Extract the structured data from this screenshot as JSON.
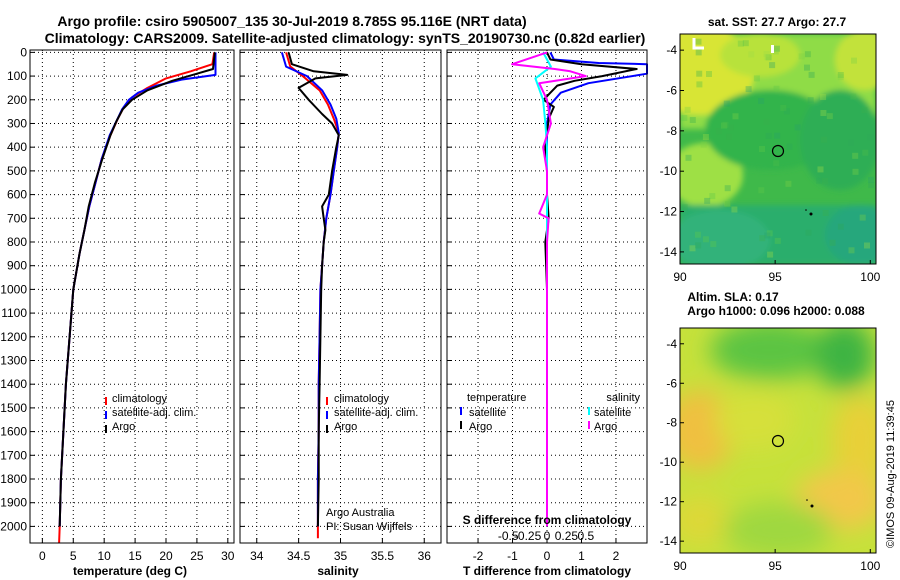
{
  "header": {
    "line1": "Argo profile: csiro 5905007_135 30-Jul-2019 8.785S 95.116E (NRT data)",
    "line2": "Climatology: CARS2009. Satellite-adjusted climatology: synTS_20190730.nc (0.82d earlier)"
  },
  "colors": {
    "climatology": "#ff0000",
    "satellite": "#0000ff",
    "argo": "#000000",
    "sat_salinity": "#00ffff",
    "argo_salinity": "#ff00ff"
  },
  "chart_data": [
    {
      "type": "line",
      "panel": "temperature",
      "xlabel": "temperature (deg C)",
      "xlim": [
        -2,
        31
      ],
      "ylim": [
        2070,
        -10
      ],
      "xticks": [
        0,
        5,
        10,
        15,
        20,
        25,
        30
      ],
      "yticks": [
        0,
        100,
        200,
        300,
        400,
        500,
        600,
        700,
        800,
        900,
        1000,
        1100,
        1200,
        1300,
        1400,
        1500,
        1600,
        1700,
        1800,
        1900,
        2000
      ],
      "legend": [
        "climatology",
        "satellite-adj. clim.",
        "Argo"
      ],
      "series": [
        {
          "name": "climatology",
          "color": "#ff0000",
          "x": [
            27.8,
            27.5,
            24,
            20,
            17,
            14.5,
            13.2,
            12.2,
            11,
            9.6,
            8.6,
            7.6,
            6.8,
            6.0,
            5.0,
            4.4,
            3.8,
            3.4,
            3.0,
            2.8,
            2.7
          ],
          "y": [
            0,
            50,
            80,
            110,
            150,
            190,
            230,
            280,
            350,
            450,
            550,
            650,
            750,
            850,
            1000,
            1200,
            1400,
            1600,
            1800,
            2000,
            2070
          ]
        },
        {
          "name": "satellite-adj. clim.",
          "color": "#0000ff",
          "x": [
            28.0,
            28.0,
            22.5,
            18.5,
            15.5,
            14.0,
            12.9,
            12.0,
            10.9,
            9.6,
            8.6,
            7.6,
            6.8,
            6.0,
            5.0,
            4.4,
            3.8,
            3.4,
            3.0,
            2.8
          ],
          "y": [
            0,
            95,
            115,
            140,
            170,
            200,
            240,
            290,
            350,
            450,
            550,
            650,
            750,
            850,
            1000,
            1200,
            1400,
            1600,
            1800,
            2000
          ]
        },
        {
          "name": "Argo",
          "color": "#000000",
          "x": [
            27.9,
            27.6,
            25,
            21,
            17,
            14.5,
            13.0,
            12.0,
            11.0,
            9.7,
            8.5,
            7.5,
            6.8,
            6.0,
            5.0,
            4.4,
            3.8,
            3.4,
            3.0,
            2.8
          ],
          "y": [
            0,
            70,
            90,
            120,
            160,
            200,
            240,
            290,
            350,
            450,
            550,
            650,
            750,
            850,
            1000,
            1200,
            1400,
            1600,
            1800,
            2000
          ]
        }
      ]
    },
    {
      "type": "line",
      "panel": "salinity",
      "xlabel": "salinity",
      "xlim": [
        33.8,
        36.2
      ],
      "ylim": [
        2070,
        -10
      ],
      "xticks": [
        34,
        34.5,
        35,
        35.5,
        36
      ],
      "legend": [
        "climatology",
        "satellite-adj. clim.",
        "Argo"
      ],
      "annotations": [
        "Argo Australia",
        "PI: Susan Wijffels"
      ],
      "series": [
        {
          "name": "climatology",
          "color": "#ff0000",
          "x": [
            34.35,
            34.4,
            34.55,
            34.75,
            34.85,
            34.92,
            34.98,
            34.96,
            34.92,
            34.88,
            34.83,
            34.8,
            34.78,
            34.76,
            34.75,
            34.74,
            34.74,
            34.73,
            34.73,
            34.73
          ],
          "y": [
            0,
            60,
            100,
            160,
            220,
            280,
            340,
            400,
            500,
            600,
            700,
            800,
            900,
            1000,
            1200,
            1400,
            1600,
            1800,
            2000,
            2050
          ]
        },
        {
          "name": "satellite-adj. clim.",
          "color": "#0000ff",
          "x": [
            34.3,
            34.35,
            34.6,
            34.78,
            34.88,
            34.95,
            34.98,
            34.96,
            34.92,
            34.88,
            34.83,
            34.8,
            34.78,
            34.76,
            34.75,
            34.74,
            34.74,
            34.73,
            34.73
          ],
          "y": [
            0,
            60,
            100,
            160,
            220,
            280,
            340,
            400,
            500,
            600,
            700,
            800,
            900,
            1000,
            1200,
            1400,
            1600,
            1800,
            2000
          ]
        },
        {
          "name": "Argo",
          "color": "#000000",
          "x": [
            34.38,
            34.42,
            34.68,
            35.08,
            34.7,
            34.5,
            34.62,
            34.78,
            34.9,
            34.98,
            34.95,
            34.9,
            34.86,
            34.78,
            34.8,
            34.82,
            34.8,
            34.78,
            34.77,
            34.76,
            34.75,
            34.74,
            34.74,
            34.73
          ],
          "y": [
            0,
            50,
            80,
            95,
            110,
            150,
            200,
            260,
            300,
            350,
            400,
            500,
            600,
            650,
            700,
            750,
            800,
            900,
            1000,
            1200,
            1400,
            1600,
            1800,
            2000
          ]
        }
      ]
    },
    {
      "type": "line",
      "panel": "difference",
      "xlabel": "T difference from climatology",
      "xlabel_top": "S difference from climatology",
      "xlim": [
        -2.9,
        2.9
      ],
      "ylim": [
        2070,
        -10
      ],
      "xticks": [
        -2,
        -1,
        0,
        1,
        2
      ],
      "xticklabels": [
        "-2",
        "-1",
        "0",
        "1",
        "2"
      ],
      "sticks": [
        -0.5,
        -0.25,
        0,
        0.25,
        0.5
      ],
      "sticklabels": [
        "-0.5",
        "-0.25",
        "0",
        "0.25",
        "0.5"
      ],
      "legend_left_title": "temperature",
      "legend_right_title": "salinity",
      "legend": [
        "satellite",
        "Argo",
        "satellite",
        "Argo"
      ],
      "series": [
        {
          "name": "temperature satellite",
          "color": "#0000ff",
          "x": [
            0.1,
            0.2,
            1.5,
            2.9,
            2.9,
            1.2,
            0.4,
            0.1,
            0.0,
            0.0,
            0.0,
            0.0,
            0.0
          ],
          "y": [
            0,
            30,
            45,
            50,
            90,
            130,
            170,
            220,
            300,
            500,
            1000,
            1500,
            2000
          ]
        },
        {
          "name": "temperature Argo",
          "color": "#000000",
          "x": [
            0.0,
            0.1,
            1.0,
            2.6,
            1.6,
            0.8,
            0.3,
            0.1,
            -0.1,
            0.2,
            0.05,
            -0.05,
            0.0,
            0.0,
            0.05,
            -0.05,
            0.0,
            0.0,
            0.0
          ],
          "y": [
            0,
            30,
            50,
            70,
            100,
            120,
            140,
            170,
            200,
            230,
            280,
            400,
            500,
            600,
            700,
            800,
            1000,
            1500,
            2000
          ]
        },
        {
          "name": "salinity satellite",
          "color": "#00ffff",
          "x": [
            -0.05,
            0.05,
            -0.15,
            -0.05,
            -0.02,
            0.0,
            0.0,
            0.0,
            0.0,
            0.0,
            0.0
          ],
          "y": [
            0,
            60,
            110,
            200,
            300,
            400,
            600,
            900,
            1200,
            1600,
            2000
          ]
        },
        {
          "name": "salinity Argo",
          "color": "#ff00ff",
          "x": [
            0.0,
            -0.45,
            0.1,
            0.3,
            0.5,
            -0.1,
            0.0,
            0.05,
            -0.05,
            0.0,
            0.0,
            -0.1,
            0.02,
            0.0,
            0.0,
            0.0,
            0.0,
            0.0
          ],
          "y": [
            0,
            50,
            70,
            80,
            100,
            130,
            200,
            300,
            400,
            500,
            600,
            680,
            700,
            800,
            1000,
            1200,
            1500,
            2000
          ]
        }
      ]
    },
    {
      "type": "heatmap",
      "panel": "sst_map",
      "title": "sat. SST: 27.7 Argo: 27.7",
      "xlim": [
        90,
        100.3
      ],
      "ylim": [
        -14.6,
        -3.2
      ],
      "xticks": [
        90,
        95,
        100
      ],
      "yticks": [
        -4,
        -6,
        -8,
        -10,
        -12,
        -14
      ],
      "marker": {
        "lon": 95.116,
        "lat": -8.785
      }
    },
    {
      "type": "heatmap",
      "panel": "sla_map",
      "title": "Altim. SLA: 0.17",
      "subtitle": "Argo h1000: 0.096 h2000: 0.088",
      "xlim": [
        90,
        100.3
      ],
      "ylim": [
        -14.6,
        -3.2
      ],
      "xticks": [
        90,
        95,
        100
      ],
      "yticks": [
        -4,
        -6,
        -8,
        -10,
        -12,
        -14
      ],
      "marker": {
        "lon": 95.116,
        "lat": -8.785
      }
    }
  ],
  "footer": {
    "credit": "©IMOS 09-Aug-2019 11:39:45"
  }
}
